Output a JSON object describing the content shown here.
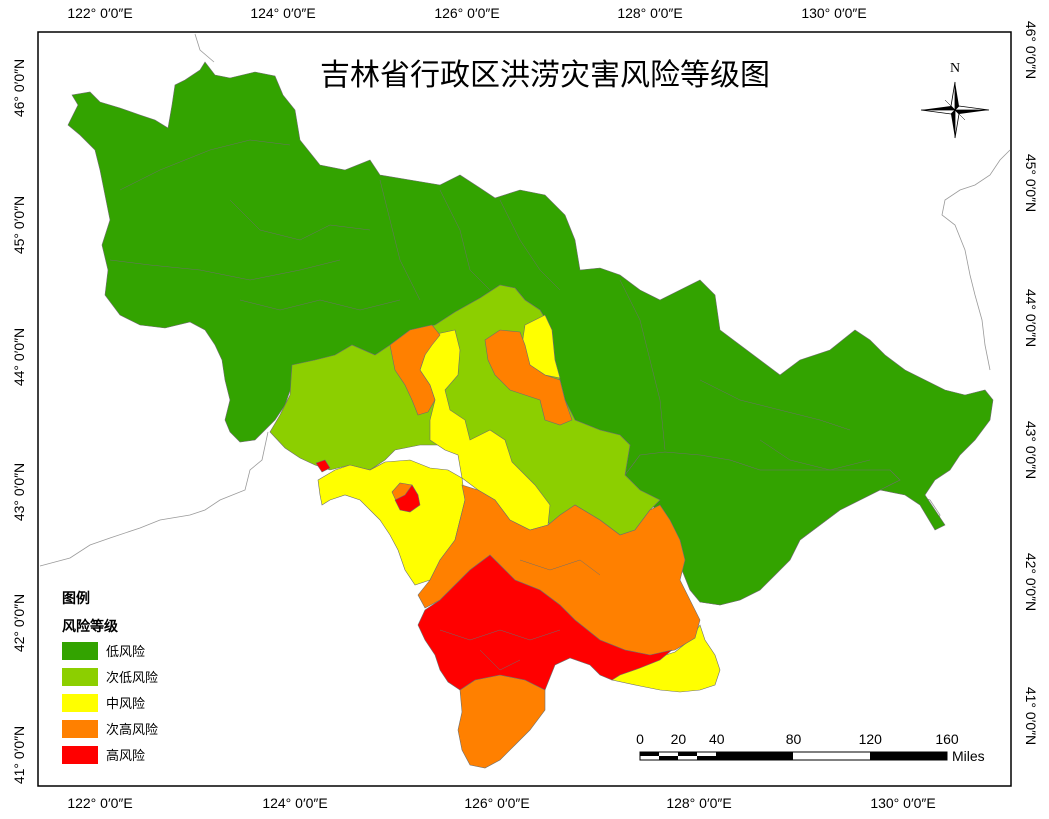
{
  "title": "吉林省行政区洪涝灾害风险等级图",
  "north_label": "N",
  "legend": {
    "heading": "图例",
    "subheading": "风险等级",
    "items": [
      {
        "label": "低风险",
        "color": "#33a300"
      },
      {
        "label": "次低风险",
        "color": "#8ccf00"
      },
      {
        "label": "中风险",
        "color": "#ffff00"
      },
      {
        "label": "次高风险",
        "color": "#ff8000"
      },
      {
        "label": "高风险",
        "color": "#ff0000"
      }
    ]
  },
  "scale_bar": {
    "ticks": [
      "0",
      "20",
      "40",
      "80",
      "120",
      "160"
    ],
    "unit": "Miles"
  },
  "graticule": {
    "top": [
      "122° 0′0″E",
      "124° 0′0″E",
      "126° 0′0″E",
      "128° 0′0″E",
      "130° 0′0″E"
    ],
    "bottom": [
      "122° 0′0″E",
      "124° 0′0″E",
      "126° 0′0″E",
      "128° 0′0″E",
      "130° 0′0″E"
    ],
    "left": [
      "46° 0′0″N",
      "45° 0′0″N",
      "44° 0′0″N",
      "43° 0′0″N",
      "42° 0′0″N",
      "41° 0′0″N"
    ],
    "right": [
      "46° 0′0″N",
      "45° 0′0″N",
      "44° 0′0″N",
      "43° 0′0″N",
      "42° 0′0″N",
      "41° 0′0″N"
    ]
  }
}
